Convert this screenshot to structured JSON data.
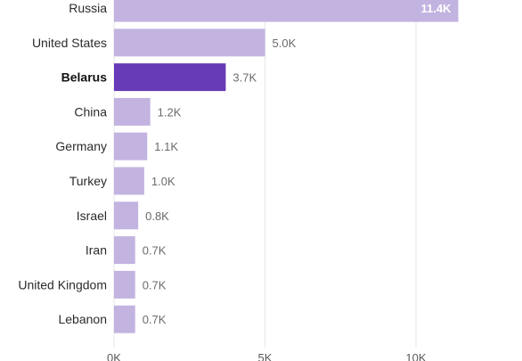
{
  "chart_data": {
    "type": "bar",
    "orientation": "horizontal",
    "categories": [
      "Russia",
      "United States",
      "Belarus",
      "China",
      "Germany",
      "Turkey",
      "Israel",
      "Iran",
      "United Kingdom",
      "Lebanon"
    ],
    "values": [
      11400,
      5000,
      3700,
      1200,
      1100,
      1000,
      800,
      700,
      700,
      700
    ],
    "value_labels": [
      "11.4K",
      "5.0K",
      "3.7K",
      "1.2K",
      "1.1K",
      "1.0K",
      "0.8K",
      "0.7K",
      "0.7K",
      "0.7K"
    ],
    "highlighted_category": "Belarus",
    "x_ticks": [
      0,
      5000,
      10000
    ],
    "x_tick_labels": [
      "0K",
      "5K",
      "10K"
    ],
    "xlim": [
      0,
      12000
    ],
    "grid": true,
    "title": "",
    "xlabel": "",
    "ylabel": "",
    "colors": {
      "bar": "#c3b3e0",
      "highlight": "#673ab7",
      "grid": "#e6e6e6",
      "label": "#2b2b2b",
      "value": "#6b6b6b"
    }
  }
}
